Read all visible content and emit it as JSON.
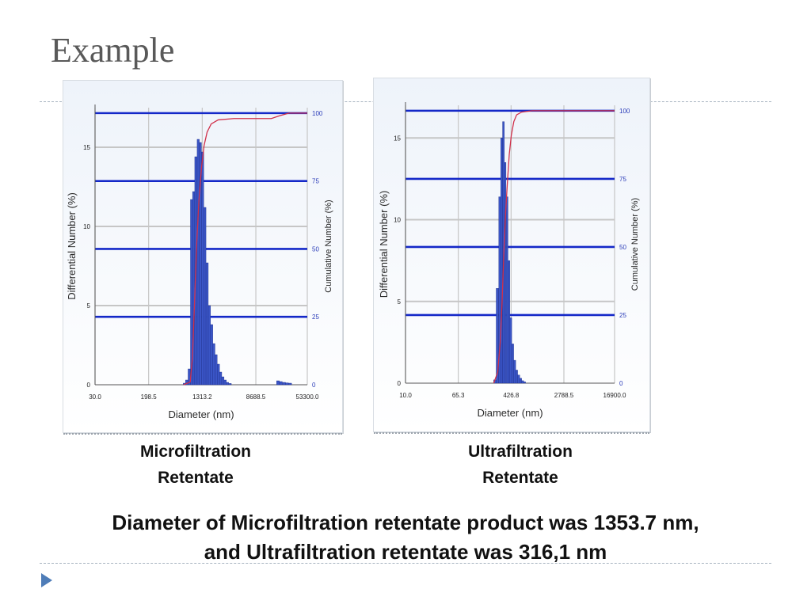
{
  "slide": {
    "title": "Example",
    "captions": [
      {
        "line1": "Microfiltration",
        "line2": "Retentate"
      },
      {
        "line1": "Ultrafiltration",
        "line2": "Retentate"
      }
    ],
    "conclusion_line1": "Diameter of Microfiltration retentate product was 1353.7 nm,",
    "conclusion_line2": "and Ultrafiltration retentate was 316,1 nm"
  },
  "colors": {
    "bars": "#3a55c6",
    "bar_edge": "#1e2f8c",
    "cumulative_curve": "#d0304a",
    "major_grid": "#1428c8",
    "minor_grid": "#c6c6c6",
    "left_axis_text": "#222222",
    "right_axis_text": "#2a3bb8"
  },
  "chart_data": [
    {
      "type": "bar",
      "title": "Microfiltration Retentate",
      "xlabel": "Diameter (nm)",
      "ylabel": "Differential Number (%)",
      "y2label": "Cumulative Number (%)",
      "x_scale": "log",
      "xlim": [
        30.0,
        53300.0
      ],
      "x_ticks": [
        30.0,
        198.5,
        1313.2,
        8688.5,
        53300.0
      ],
      "x_tick_labels": [
        "30.0",
        "198.5",
        "1313.2",
        "8688.5",
        "53300.0"
      ],
      "ylim": [
        0,
        17.5
      ],
      "y_ticks": [
        0,
        5,
        10,
        15
      ],
      "y_tick_labels": [
        "0",
        "5",
        "10",
        "15"
      ],
      "y2lim": [
        0,
        102
      ],
      "y2_ticks": [
        0,
        25,
        50,
        75,
        100
      ],
      "y2_tick_labels": [
        "0",
        "25",
        "50",
        "75",
        "100"
      ],
      "grid": true,
      "bars": [
        {
          "x": 700,
          "y": 0.1
        },
        {
          "x": 760,
          "y": 0.3
        },
        {
          "x": 830,
          "y": 1.0
        },
        {
          "x": 900,
          "y": 11.7
        },
        {
          "x": 970,
          "y": 12.2
        },
        {
          "x": 1050,
          "y": 14.4
        },
        {
          "x": 1140,
          "y": 15.5
        },
        {
          "x": 1230,
          "y": 15.3
        },
        {
          "x": 1330,
          "y": 14.7
        },
        {
          "x": 1440,
          "y": 11.2
        },
        {
          "x": 1560,
          "y": 7.7
        },
        {
          "x": 1690,
          "y": 5.0
        },
        {
          "x": 1830,
          "y": 3.8
        },
        {
          "x": 1980,
          "y": 2.6
        },
        {
          "x": 2140,
          "y": 1.9
        },
        {
          "x": 2320,
          "y": 1.3
        },
        {
          "x": 2510,
          "y": 0.8
        },
        {
          "x": 2720,
          "y": 0.5
        },
        {
          "x": 2950,
          "y": 0.3
        },
        {
          "x": 3200,
          "y": 0.15
        },
        {
          "x": 3500,
          "y": 0.08
        },
        {
          "x": 19000,
          "y": 0.25
        },
        {
          "x": 21000,
          "y": 0.2
        },
        {
          "x": 23500,
          "y": 0.15
        },
        {
          "x": 26000,
          "y": 0.12
        },
        {
          "x": 29000,
          "y": 0.1
        }
      ],
      "cumulative": [
        {
          "x": 680,
          "y": 0
        },
        {
          "x": 860,
          "y": 1
        },
        {
          "x": 930,
          "y": 10
        },
        {
          "x": 1000,
          "y": 30
        },
        {
          "x": 1080,
          "y": 52
        },
        {
          "x": 1170,
          "y": 68
        },
        {
          "x": 1280,
          "y": 80
        },
        {
          "x": 1400,
          "y": 88
        },
        {
          "x": 1560,
          "y": 93
        },
        {
          "x": 1800,
          "y": 96
        },
        {
          "x": 2300,
          "y": 97.5
        },
        {
          "x": 4000,
          "y": 98
        },
        {
          "x": 15000,
          "y": 98
        },
        {
          "x": 20000,
          "y": 99
        },
        {
          "x": 28000,
          "y": 100
        },
        {
          "x": 53300,
          "y": 100
        }
      ]
    },
    {
      "type": "bar",
      "title": "Ultrafiltration Retentate",
      "xlabel": "Diameter (nm)",
      "ylabel": "Differential Number (%)",
      "y2label": "Cumulative Number (%)",
      "x_scale": "log",
      "xlim": [
        10.0,
        16900.0
      ],
      "x_ticks": [
        10.0,
        65.3,
        426.8,
        2788.5,
        16900.0
      ],
      "x_tick_labels": [
        "10.0",
        "65.3",
        "426.8",
        "2788.5",
        "16900.0"
      ],
      "ylim": [
        0,
        17.0
      ],
      "y_ticks": [
        0,
        5,
        10,
        15
      ],
      "y_tick_labels": [
        "0",
        "5",
        "10",
        "15"
      ],
      "y2lim": [
        0,
        102
      ],
      "y2_ticks": [
        0,
        25,
        50,
        75,
        100
      ],
      "y2_tick_labels": [
        "0",
        "25",
        "50",
        "75",
        "100"
      ],
      "grid": true,
      "bars": [
        {
          "x": 240,
          "y": 0.2
        },
        {
          "x": 262,
          "y": 5.8
        },
        {
          "x": 285,
          "y": 11.4
        },
        {
          "x": 305,
          "y": 15.0
        },
        {
          "x": 325,
          "y": 16.0
        },
        {
          "x": 345,
          "y": 13.5
        },
        {
          "x": 370,
          "y": 11.4
        },
        {
          "x": 395,
          "y": 7.5
        },
        {
          "x": 422,
          "y": 4.0
        },
        {
          "x": 452,
          "y": 2.4
        },
        {
          "x": 485,
          "y": 1.4
        },
        {
          "x": 520,
          "y": 0.8
        },
        {
          "x": 560,
          "y": 0.5
        },
        {
          "x": 600,
          "y": 0.3
        },
        {
          "x": 645,
          "y": 0.15
        },
        {
          "x": 690,
          "y": 0.08
        }
      ],
      "cumulative": [
        {
          "x": 230,
          "y": 0
        },
        {
          "x": 265,
          "y": 4
        },
        {
          "x": 290,
          "y": 15
        },
        {
          "x": 310,
          "y": 30
        },
        {
          "x": 330,
          "y": 48
        },
        {
          "x": 350,
          "y": 62
        },
        {
          "x": 375,
          "y": 74
        },
        {
          "x": 400,
          "y": 84
        },
        {
          "x": 430,
          "y": 91
        },
        {
          "x": 470,
          "y": 96
        },
        {
          "x": 520,
          "y": 98.5
        },
        {
          "x": 620,
          "y": 99.5
        },
        {
          "x": 900,
          "y": 100
        },
        {
          "x": 16900,
          "y": 100
        }
      ]
    }
  ]
}
